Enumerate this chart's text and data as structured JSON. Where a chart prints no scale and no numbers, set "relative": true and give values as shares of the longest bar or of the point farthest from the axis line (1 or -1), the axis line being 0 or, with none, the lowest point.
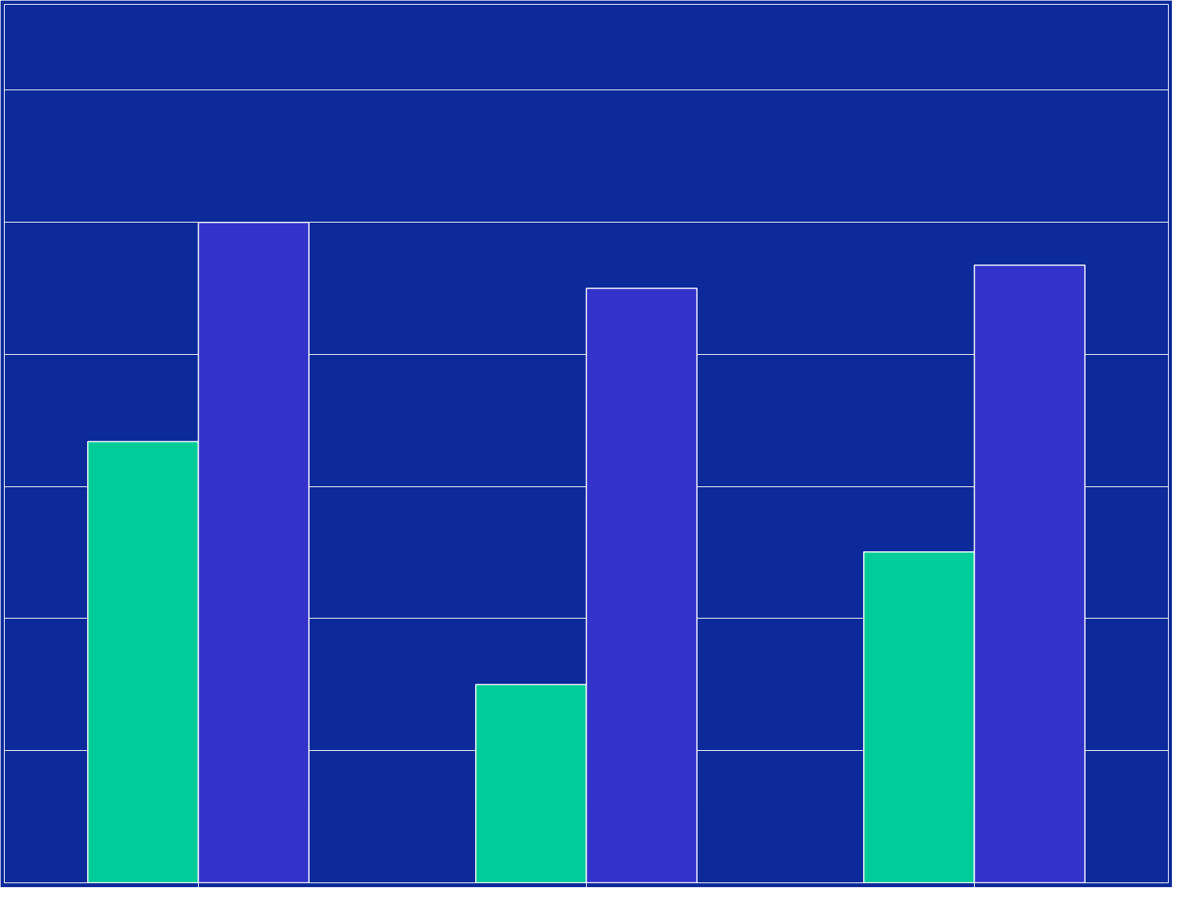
{
  "chart_data": {
    "type": "bar",
    "categories": [
      null,
      null,
      null
    ],
    "relative": true,
    "grid": "y",
    "series": [
      {
        "color": "#00cc99",
        "values": [
          0.668,
          0.3,
          0.501
        ]
      },
      {
        "color": "#3333cc",
        "values": [
          1,
          0.9,
          0.935
        ]
      }
    ]
  }
}
